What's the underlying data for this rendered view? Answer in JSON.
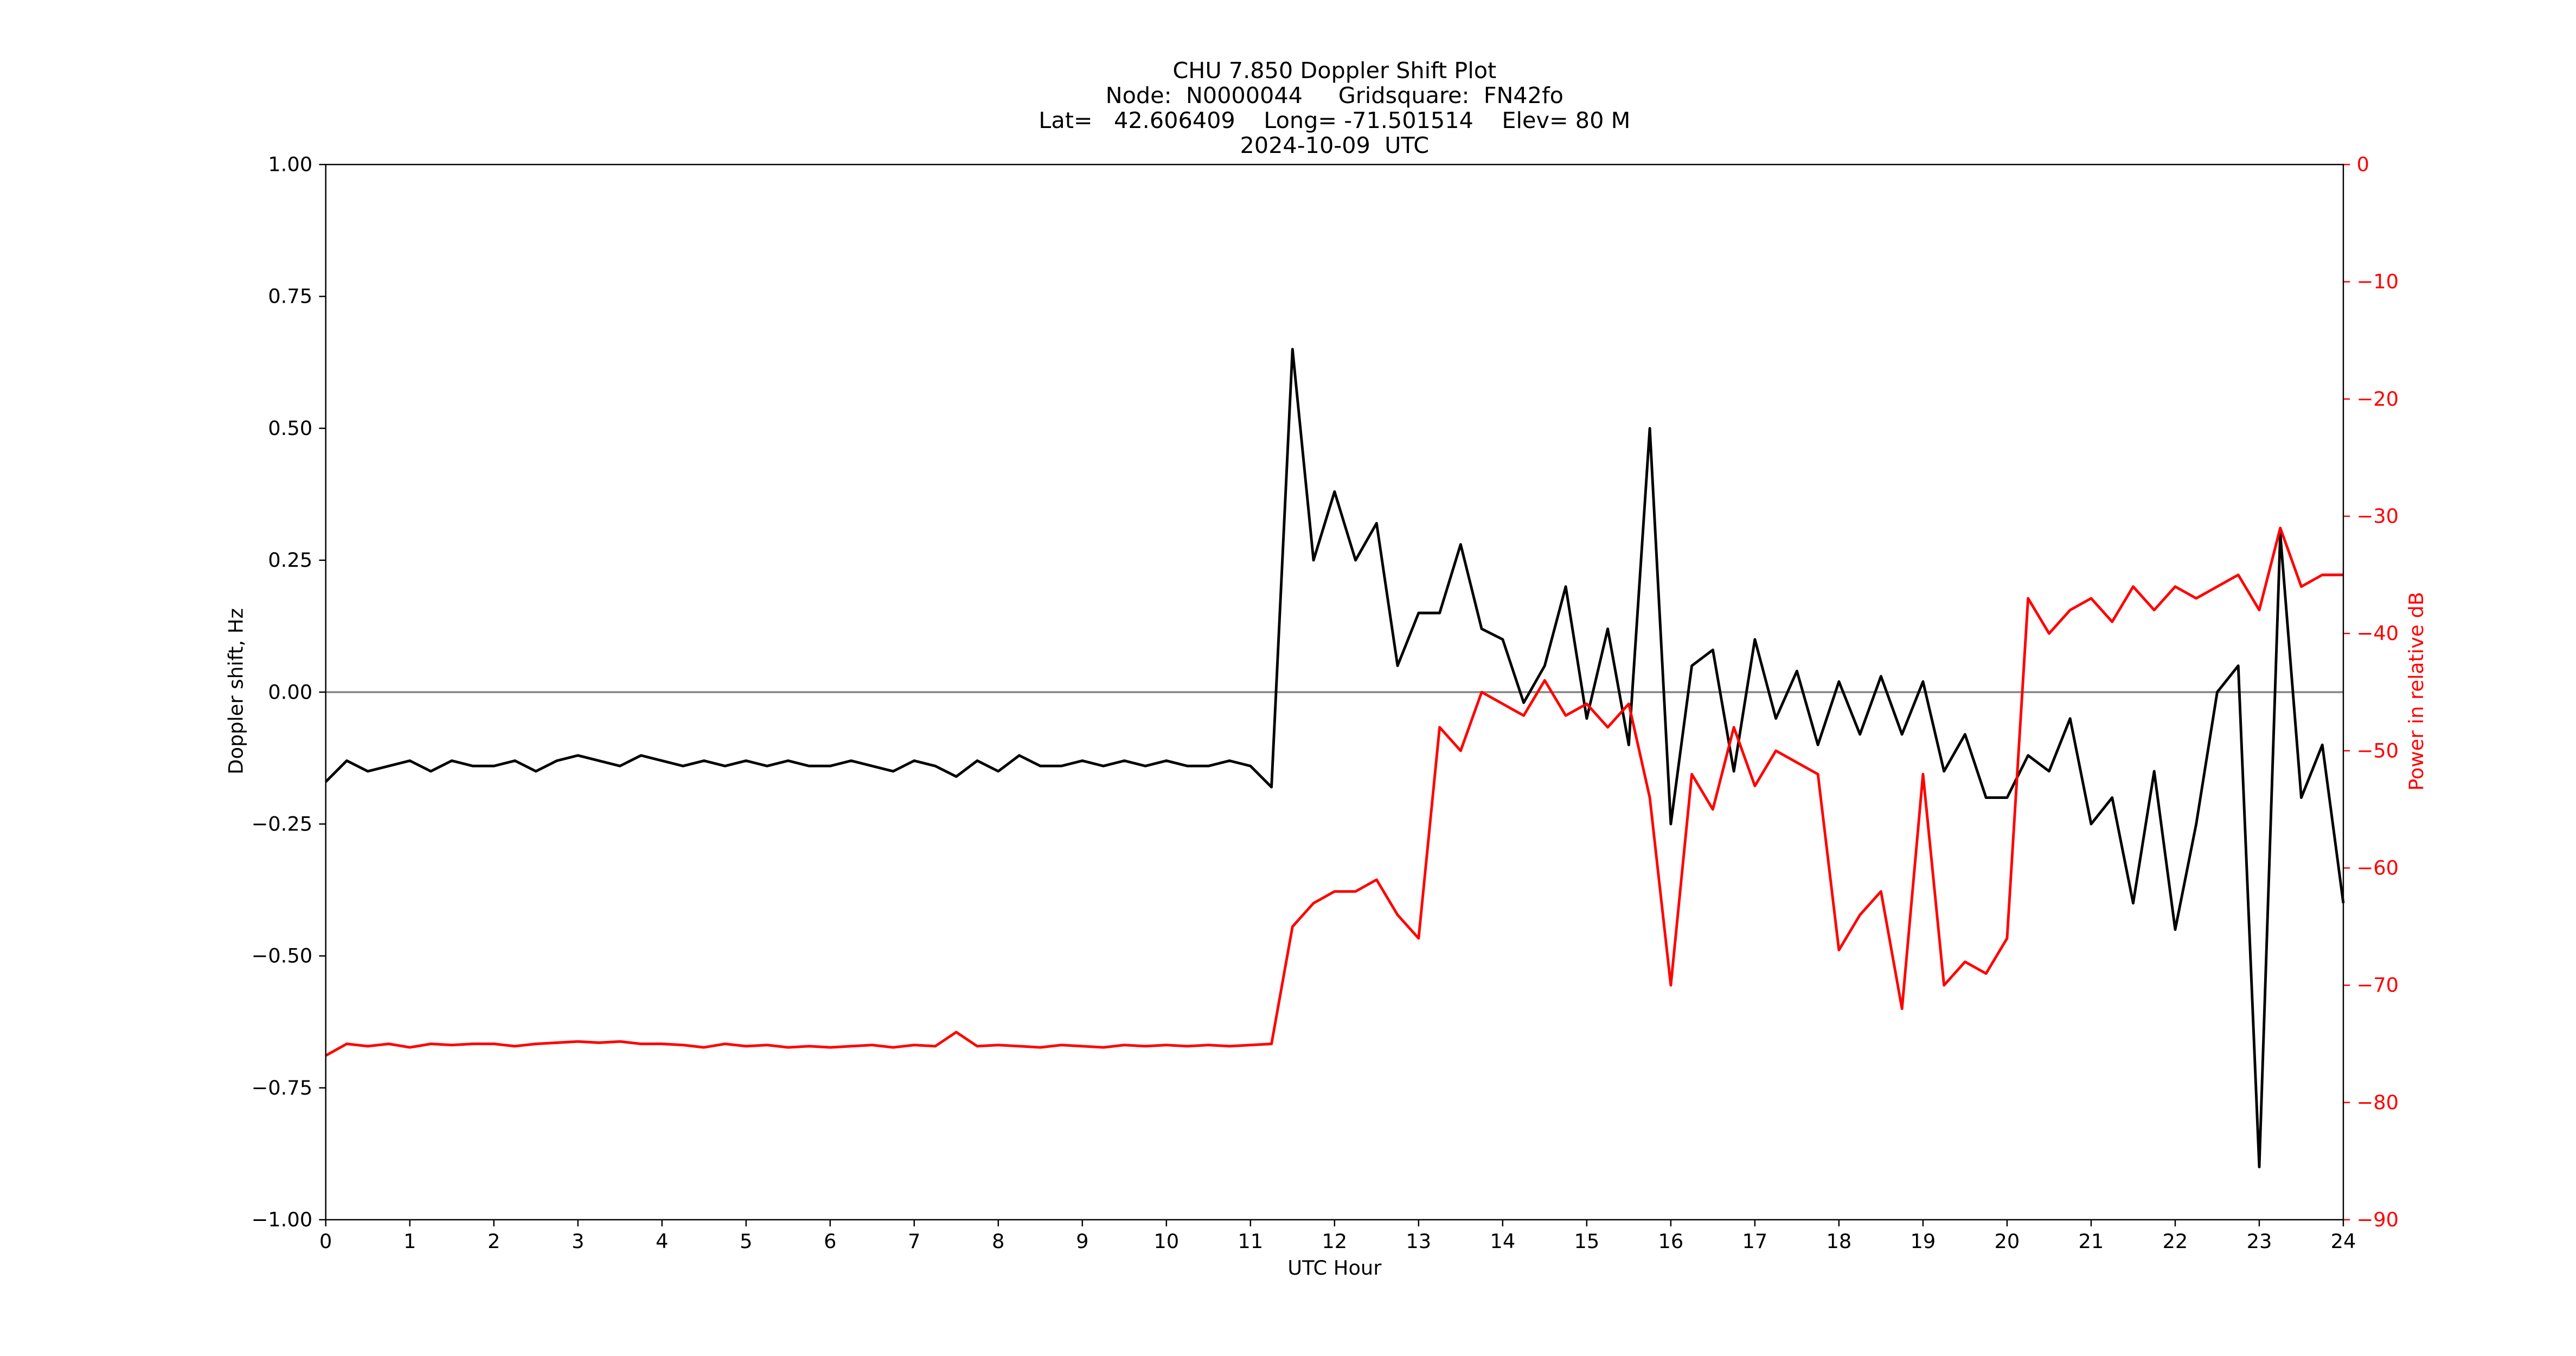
{
  "chart_data": {
    "type": "line",
    "title": [
      "CHU 7.850 Doppler Shift Plot",
      "Node:  N0000044     Gridsquare:  FN42fo",
      "Lat=   42.606409    Long= -71.501514    Elev= 80 M",
      "2024-10-09  UTC"
    ],
    "x_label": "UTC Hour",
    "y_label": "Doppler shift, Hz",
    "y2_label": "Power in relative dB",
    "x": [
      0,
      0.25,
      0.5,
      0.75,
      1,
      1.25,
      1.5,
      1.75,
      2,
      2.25,
      2.5,
      2.75,
      3,
      3.25,
      3.5,
      3.75,
      4,
      4.25,
      4.5,
      4.75,
      5,
      5.25,
      5.5,
      5.75,
      6,
      6.25,
      6.5,
      6.75,
      7,
      7.25,
      7.5,
      7.75,
      8,
      8.25,
      8.5,
      8.75,
      9,
      9.25,
      9.5,
      9.75,
      10,
      10.25,
      10.5,
      10.75,
      11,
      11.25,
      11.5,
      11.75,
      12,
      12.25,
      12.5,
      12.75,
      13,
      13.25,
      13.5,
      13.75,
      14,
      14.25,
      14.5,
      14.75,
      15,
      15.25,
      15.5,
      15.75,
      16,
      16.25,
      16.5,
      16.75,
      17,
      17.25,
      17.5,
      17.75,
      18,
      18.25,
      18.5,
      18.75,
      19,
      19.25,
      19.5,
      19.75,
      20,
      20.25,
      20.5,
      20.75,
      21,
      21.25,
      21.5,
      21.75,
      22,
      22.25,
      22.5,
      22.75,
      23,
      23.25,
      23.5,
      23.75,
      24
    ],
    "series": [
      {
        "name": "Doppler shift",
        "color": "#000000",
        "values": [
          -0.17,
          -0.13,
          -0.15,
          -0.14,
          -0.13,
          -0.15,
          -0.13,
          -0.14,
          -0.14,
          -0.13,
          -0.15,
          -0.13,
          -0.12,
          -0.13,
          -0.14,
          -0.12,
          -0.13,
          -0.14,
          -0.13,
          -0.14,
          -0.13,
          -0.14,
          -0.13,
          -0.14,
          -0.14,
          -0.13,
          -0.14,
          -0.15,
          -0.13,
          -0.14,
          -0.16,
          -0.13,
          -0.15,
          -0.12,
          -0.14,
          -0.14,
          -0.13,
          -0.14,
          -0.13,
          -0.14,
          -0.13,
          -0.14,
          -0.14,
          -0.13,
          -0.14,
          -0.18,
          0.65,
          0.25,
          0.38,
          0.25,
          0.32,
          0.05,
          0.15,
          0.15,
          0.28,
          0.12,
          0.1,
          -0.02,
          0.05,
          0.2,
          -0.05,
          0.12,
          -0.1,
          0.5,
          -0.25,
          0.05,
          0.08,
          -0.15,
          0.1,
          -0.05,
          0.04,
          -0.1,
          0.02,
          -0.08,
          0.03,
          -0.08,
          0.02,
          -0.15,
          -0.08,
          -0.2,
          -0.2,
          -0.12,
          -0.15,
          -0.05,
          -0.25,
          -0.2,
          -0.4,
          -0.15,
          -0.45,
          -0.25,
          0.0,
          0.05,
          -0.9,
          0.3,
          -0.2,
          -0.1,
          -0.4
        ]
      },
      {
        "name": "Power",
        "color": "#ff0000",
        "axis": "y2",
        "values": [
          -76,
          -75,
          -75.2,
          -75,
          -75.3,
          -75,
          -75.1,
          -75,
          -75,
          -75.2,
          -75,
          -74.9,
          -74.8,
          -74.9,
          -74.8,
          -75,
          -75,
          -75.1,
          -75.3,
          -75,
          -75.2,
          -75.1,
          -75.3,
          -75.2,
          -75.3,
          -75.2,
          -75.1,
          -75.3,
          -75.1,
          -75.2,
          -74,
          -75.2,
          -75.1,
          -75.2,
          -75.3,
          -75.1,
          -75.2,
          -75.3,
          -75.1,
          -75.2,
          -75.1,
          -75.2,
          -75.1,
          -75.2,
          -75.1,
          -75,
          -65,
          -63,
          -62,
          -62,
          -61,
          -64,
          -66,
          -48,
          -50,
          -45,
          -46,
          -47,
          -44,
          -47,
          -46,
          -48,
          -46,
          -54,
          -70,
          -52,
          -55,
          -48,
          -53,
          -50,
          -51,
          -52,
          -67,
          -64,
          -62,
          -72,
          -52,
          -70,
          -68,
          -69,
          -66,
          -37,
          -40,
          -38,
          -37,
          -39,
          -36,
          -38,
          -36,
          -37,
          -36,
          -35,
          -38,
          -31,
          -36,
          -35,
          -35
        ]
      }
    ],
    "xlim": [
      0,
      24
    ],
    "xticks": [
      0,
      1,
      2,
      3,
      4,
      5,
      6,
      7,
      8,
      9,
      10,
      11,
      12,
      13,
      14,
      15,
      16,
      17,
      18,
      19,
      20,
      21,
      22,
      23,
      24
    ],
    "ylim": [
      -1,
      1
    ],
    "yticks": [
      {
        "value": -1,
        "label": "−1.00"
      },
      {
        "value": -0.75,
        "label": "−0.75"
      },
      {
        "value": -0.5,
        "label": "−0.50"
      },
      {
        "value": -0.25,
        "label": "−0.25"
      },
      {
        "value": 0,
        "label": "0.00"
      },
      {
        "value": 0.25,
        "label": "0.25"
      },
      {
        "value": 0.5,
        "label": "0.50"
      },
      {
        "value": 0.75,
        "label": "0.75"
      },
      {
        "value": 1,
        "label": "1.00"
      }
    ],
    "y2lim": [
      -90,
      0
    ],
    "y2ticks": [
      {
        "value": -90,
        "label": "−90"
      },
      {
        "value": -80,
        "label": "−80"
      },
      {
        "value": -70,
        "label": "−70"
      },
      {
        "value": -60,
        "label": "−60"
      },
      {
        "value": -50,
        "label": "−50"
      },
      {
        "value": -40,
        "label": "−40"
      },
      {
        "value": -30,
        "label": "−30"
      },
      {
        "value": -20,
        "label": "−20"
      },
      {
        "value": -10,
        "label": "−10"
      },
      0
    ],
    "y2_color": "#ff0000",
    "hline": 0,
    "hline_color": "#888888"
  }
}
